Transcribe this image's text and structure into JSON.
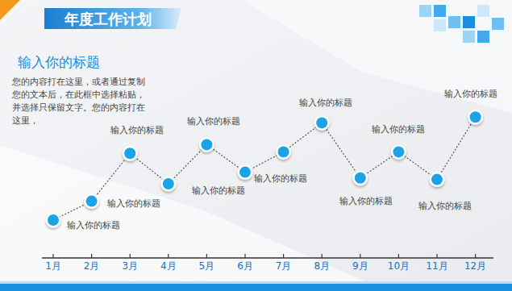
{
  "header": {
    "banner": "年度工作计划",
    "heading": "输入你的标题",
    "body": [
      "您的内容打在这里，或者通过复制",
      "您的文本后，在此框中选择粘贴，",
      "并选择只保留文字。您的内容打在",
      "这里，"
    ]
  },
  "chart_data": {
    "type": "line",
    "categories": [
      "1月",
      "2月",
      "3月",
      "4月",
      "5月",
      "6月",
      "7月",
      "8月",
      "9月",
      "10月",
      "11月",
      "12月"
    ],
    "values": [
      15,
      28,
      61,
      40,
      67,
      48,
      62,
      82,
      44,
      62,
      43,
      86
    ],
    "annotations": [
      "输入你的标题",
      "输入你的标题",
      "输入你的标题",
      null,
      "输入你的标题",
      "输入你的标题",
      "输入你的标题",
      "输入你的标题",
      "输入你的标题",
      "输入你的标题",
      "输入你的标题",
      "输入你的标题"
    ],
    "ylim": [
      0,
      100
    ],
    "tick_labels": "x",
    "color": "#1aa3e8",
    "marker": "circle",
    "line_style": "dotted",
    "grid": false
  }
}
